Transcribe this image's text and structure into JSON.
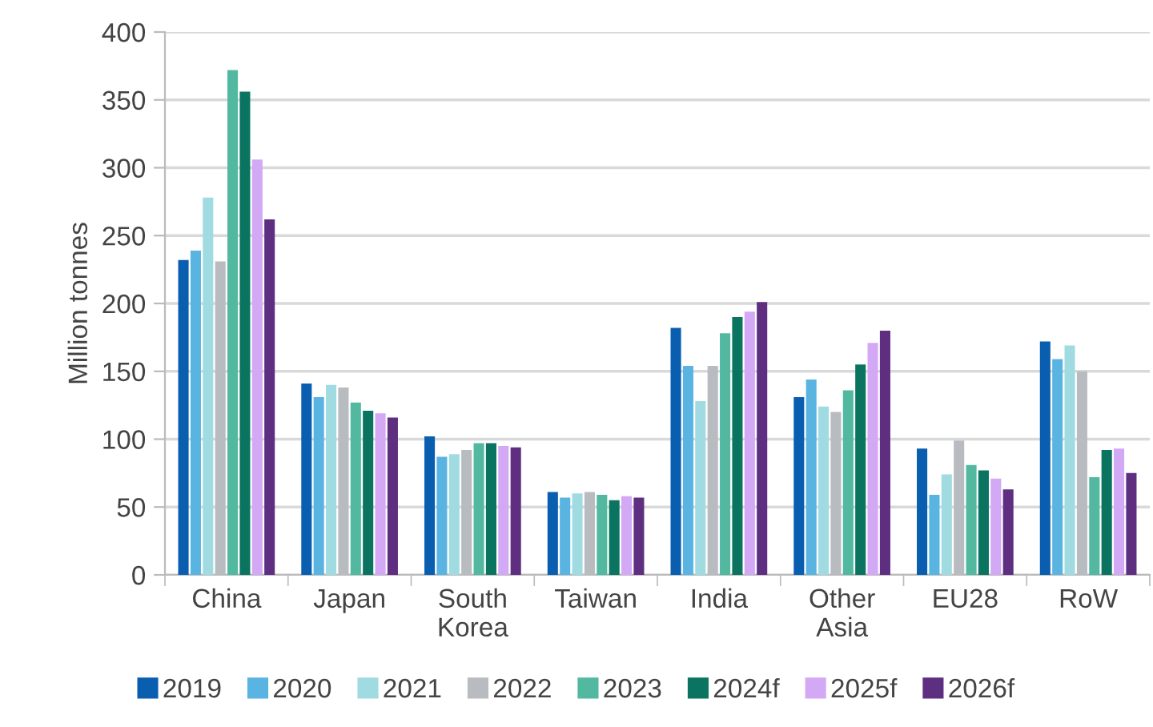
{
  "chart_data": {
    "type": "bar",
    "ylabel": "Million tonnes",
    "categories": [
      "China",
      "Japan",
      "South\nKorea",
      "Taiwan",
      "India",
      "Other\nAsia",
      "EU28",
      "RoW"
    ],
    "series": [
      {
        "name": "2019",
        "color": "#0a5eb0",
        "values": [
          232,
          141,
          102,
          61,
          182,
          131,
          93,
          172
        ]
      },
      {
        "name": "2020",
        "color": "#5ab4e2",
        "values": [
          239,
          131,
          87,
          57,
          154,
          144,
          59,
          159
        ]
      },
      {
        "name": "2021",
        "color": "#a0dbe2",
        "values": [
          278,
          140,
          89,
          60,
          128,
          124,
          74,
          169
        ]
      },
      {
        "name": "2022",
        "color": "#b8bcc0",
        "values": [
          231,
          138,
          92,
          61,
          154,
          120,
          99,
          150
        ]
      },
      {
        "name": "2023",
        "color": "#52b9a0",
        "values": [
          372,
          127,
          97,
          59,
          178,
          136,
          81,
          72
        ]
      },
      {
        "name": "2024f",
        "color": "#0a7460",
        "values": [
          356,
          121,
          97,
          55,
          190,
          155,
          77,
          92
        ]
      },
      {
        "name": "2025f",
        "color": "#d3a8f5",
        "values": [
          306,
          119,
          95,
          58,
          194,
          171,
          71,
          93
        ]
      },
      {
        "name": "2026f",
        "color": "#5e2f80",
        "values": [
          262,
          116,
          94,
          57,
          201,
          180,
          63,
          75
        ]
      }
    ],
    "ylim": [
      0,
      400
    ],
    "yticks": [
      0,
      50,
      100,
      150,
      200,
      250,
      300,
      350,
      400
    ],
    "grid": "y",
    "legend": "bottom"
  }
}
